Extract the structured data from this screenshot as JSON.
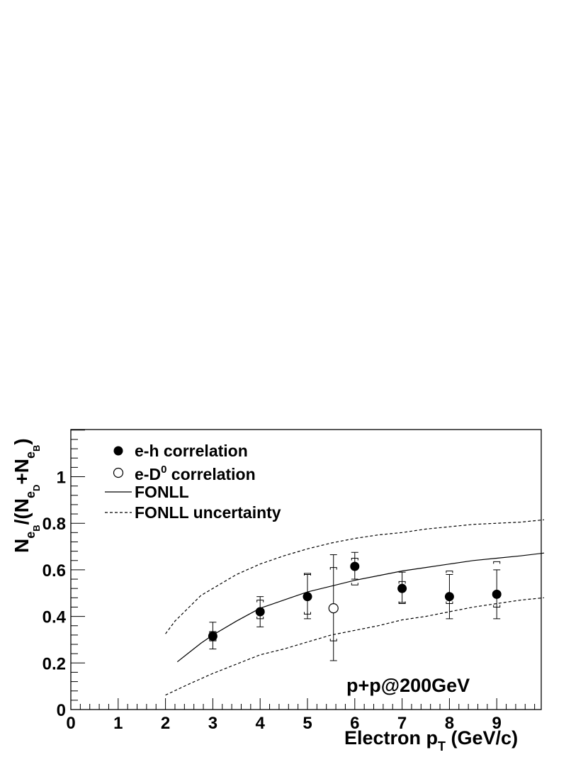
{
  "chart_data": {
    "type": "scatter",
    "xlabel": {
      "main": "Electron  p",
      "sub": "T",
      "tail": " (GeV/c)"
    },
    "ylabel": {
      "prefix": "N",
      "sub1": "e",
      "subsub1": "B",
      "mid": "/(N",
      "sub2": "e",
      "subsub2": "D",
      "plus": "+N",
      "sub3": "e",
      "subsub3": "B",
      "close": ")"
    },
    "xlim": [
      0,
      10
    ],
    "ylim": [
      0,
      1.2
    ],
    "x_ticks": [
      "0",
      "1",
      "2",
      "3",
      "4",
      "5",
      "6",
      "7",
      "8",
      "9"
    ],
    "y_ticks": [
      {
        "value": 0,
        "label": "0"
      },
      {
        "value": 0.2,
        "label": "0.2"
      },
      {
        "value": 0.4,
        "label": "0.4"
      },
      {
        "value": 0.6,
        "label": "0.6"
      },
      {
        "value": 0.8,
        "label": "0.8"
      },
      {
        "value": 1.0,
        "label": "1"
      }
    ],
    "annotation": "p+p@200GeV",
    "legend": {
      "position": "top-left",
      "items": [
        {
          "label": "e-h correlation",
          "marker": "filled-circle"
        },
        {
          "label": "e-D",
          "sup": "0",
          "tail": " correlation",
          "marker": "open-circle"
        },
        {
          "label": "FONLL",
          "marker": "solid-line"
        },
        {
          "label": "FONLL uncertainty",
          "marker": "dashed-line"
        }
      ]
    },
    "series": [
      {
        "name": "e-h correlation",
        "marker": "filled-circle",
        "points": [
          {
            "x": 3.0,
            "y": 0.315,
            "stat_lo": 0.26,
            "stat_hi": 0.375,
            "sys_lo": 0.295,
            "sys_hi": 0.335
          },
          {
            "x": 4.0,
            "y": 0.42,
            "stat_lo": 0.355,
            "stat_hi": 0.485,
            "sys_lo": 0.39,
            "sys_hi": 0.47
          },
          {
            "x": 5.0,
            "y": 0.485,
            "stat_lo": 0.39,
            "stat_hi": 0.58,
            "sys_lo": 0.41,
            "sys_hi": 0.585
          },
          {
            "x": 6.0,
            "y": 0.615,
            "stat_lo": 0.56,
            "stat_hi": 0.675,
            "sys_lo": 0.535,
            "sys_hi": 0.65
          },
          {
            "x": 7.0,
            "y": 0.52,
            "stat_lo": 0.46,
            "stat_hi": 0.59,
            "sys_lo": 0.455,
            "sys_hi": 0.55
          },
          {
            "x": 8.0,
            "y": 0.485,
            "stat_lo": 0.39,
            "stat_hi": 0.58,
            "sys_lo": 0.455,
            "sys_hi": 0.595
          },
          {
            "x": 9.0,
            "y": 0.495,
            "stat_lo": 0.39,
            "stat_hi": 0.6,
            "sys_lo": 0.44,
            "sys_hi": 0.635
          }
        ]
      },
      {
        "name": "e-D0 correlation",
        "marker": "open-circle",
        "points": [
          {
            "x": 5.55,
            "y": 0.435,
            "stat_lo": 0.21,
            "stat_hi": 0.665,
            "sys_lo": 0.295,
            "sys_hi": 0.61
          }
        ]
      },
      {
        "name": "FONLL",
        "line": "solid",
        "x": [
          2.25,
          2.5,
          2.75,
          3.0,
          3.5,
          4.0,
          4.5,
          5.0,
          5.5,
          6.0,
          6.5,
          7.0,
          7.5,
          8.0,
          8.5,
          9.0,
          9.5,
          10.0
        ],
        "y": [
          0.205,
          0.245,
          0.285,
          0.32,
          0.38,
          0.435,
          0.47,
          0.505,
          0.53,
          0.555,
          0.575,
          0.595,
          0.61,
          0.625,
          0.64,
          0.65,
          0.66,
          0.672
        ]
      },
      {
        "name": "FONLL uncertainty upper",
        "line": "dashed",
        "x": [
          2.0,
          2.2,
          2.5,
          2.75,
          3.0,
          3.5,
          4.0,
          4.5,
          5.0,
          5.5,
          6.0,
          6.5,
          7.0,
          7.5,
          8.0,
          8.5,
          9.0,
          9.5,
          10.0
        ],
        "y": [
          0.325,
          0.38,
          0.44,
          0.49,
          0.52,
          0.58,
          0.625,
          0.66,
          0.69,
          0.715,
          0.735,
          0.75,
          0.76,
          0.775,
          0.785,
          0.795,
          0.8,
          0.805,
          0.815
        ]
      },
      {
        "name": "FONLL uncertainty lower",
        "line": "dashed",
        "x": [
          2.0,
          2.5,
          3.0,
          3.5,
          4.0,
          4.5,
          5.0,
          5.5,
          6.0,
          6.5,
          7.0,
          7.5,
          8.0,
          8.5,
          9.0,
          9.5,
          10.0
        ],
        "y": [
          0.062,
          0.11,
          0.155,
          0.195,
          0.235,
          0.26,
          0.29,
          0.32,
          0.34,
          0.36,
          0.385,
          0.4,
          0.42,
          0.44,
          0.455,
          0.47,
          0.48
        ]
      }
    ]
  }
}
